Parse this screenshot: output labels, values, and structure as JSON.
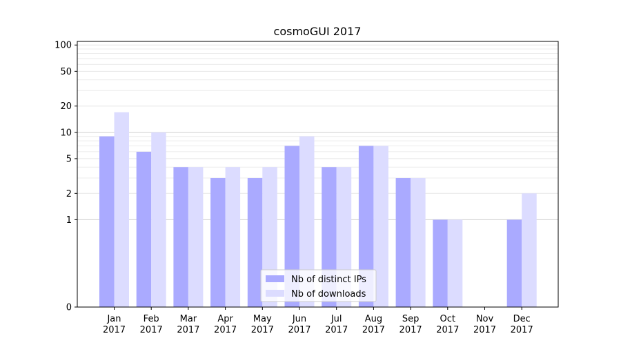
{
  "chart_data": {
    "type": "bar",
    "title": "cosmoGUI 2017",
    "xlabel": "",
    "ylabel": "",
    "scale": "symlog",
    "ylim": [
      0,
      110
    ],
    "yticks": [
      0,
      1,
      2,
      5,
      10,
      20,
      50,
      100
    ],
    "ytick_labels": [
      "0",
      "1",
      "2",
      "5",
      "10",
      "20",
      "50",
      "100"
    ],
    "grid": "horizontal",
    "legend_position": "bottom-center",
    "categories": [
      [
        "Jan",
        "2017"
      ],
      [
        "Feb",
        "2017"
      ],
      [
        "Mar",
        "2017"
      ],
      [
        "Apr",
        "2017"
      ],
      [
        "May",
        "2017"
      ],
      [
        "Jun",
        "2017"
      ],
      [
        "Jul",
        "2017"
      ],
      [
        "Aug",
        "2017"
      ],
      [
        "Sep",
        "2017"
      ],
      [
        "Oct",
        "2017"
      ],
      [
        "Nov",
        "2017"
      ],
      [
        "Dec",
        "2017"
      ]
    ],
    "series": [
      {
        "name": "Nb of distinct IPs",
        "color": "#aaaaff",
        "values": [
          9,
          6,
          4,
          3,
          3,
          7,
          4,
          7,
          3,
          1,
          0,
          1
        ]
      },
      {
        "name": "Nb of downloads",
        "color": "#dcdcff",
        "values": [
          17,
          10,
          4,
          4,
          4,
          9,
          4,
          7,
          3,
          1,
          0,
          2
        ]
      }
    ]
  }
}
